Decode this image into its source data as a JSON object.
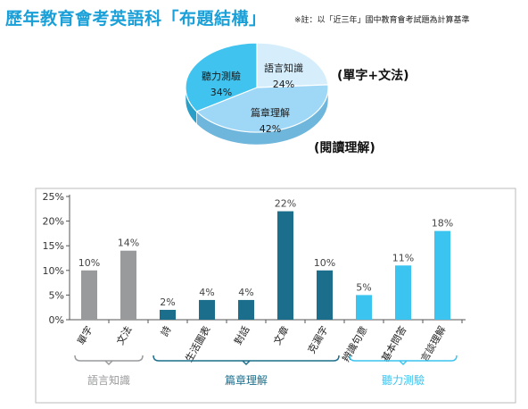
{
  "header": {
    "title": "歷年教育會考英語科「布題結構」",
    "note": "※註：以「近三年」國中教育會考試題為計算基準"
  },
  "pie_side_labels": [
    "(單字+文法)",
    "(閱讀理解)"
  ],
  "colors": {
    "title": "#1aa0d8",
    "vocab": "#999a9c",
    "reading": "#1b6e8c",
    "listening": "#3cc4f0",
    "pie_language": "#d6eefc",
    "pie_reading": "#9fd7f6",
    "pie_listening": "#40c3ef"
  },
  "chart_data": [
    {
      "type": "pie",
      "categories": [
        "語言知識",
        "篇章理解",
        "聽力測驗"
      ],
      "values": [
        24,
        42,
        34
      ],
      "labels": [
        "24%",
        "42%",
        "34%"
      ]
    },
    {
      "type": "bar",
      "ylim": [
        0,
        25
      ],
      "yticks": [
        "0%",
        "5%",
        "10%",
        "15%",
        "20%",
        "25%"
      ],
      "grid": false,
      "categories": [
        "單字",
        "文法",
        "詩",
        "生活圖表",
        "對話",
        "文章",
        "克漏字",
        "辨識句意",
        "基本問答",
        "言談理解"
      ],
      "values": [
        10,
        14,
        2,
        4,
        4,
        22,
        10,
        5,
        11,
        18
      ],
      "value_labels": [
        "10%",
        "14%",
        "2%",
        "4%",
        "4%",
        "22%",
        "10%",
        "5%",
        "11%",
        "18%"
      ],
      "groups": [
        {
          "name": "語言知識",
          "count": 2
        },
        {
          "name": "篇章理解",
          "count": 5
        },
        {
          "name": "聽力測驗",
          "count": 3
        }
      ]
    }
  ]
}
